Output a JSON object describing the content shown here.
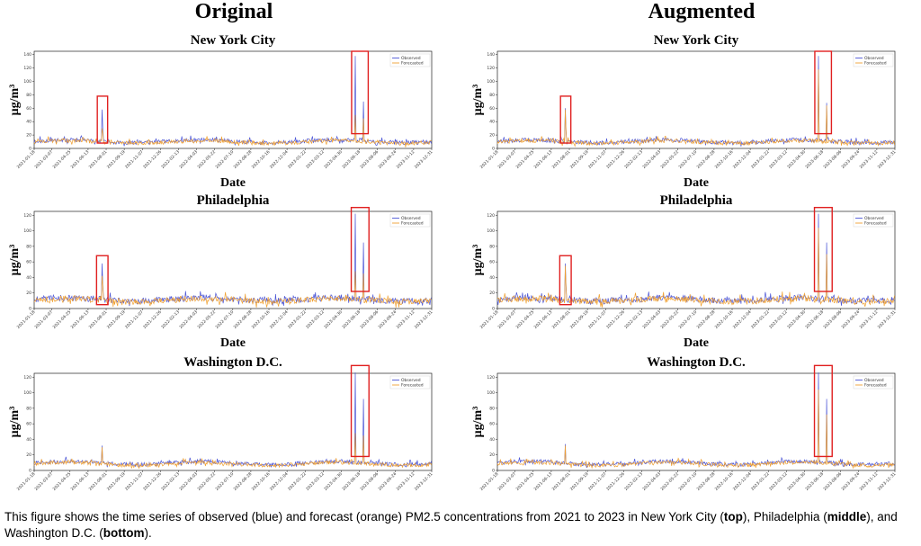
{
  "columns": {
    "left": "Original",
    "right": "Augmented"
  },
  "caption": {
    "p1": "This figure shows the time series of observed (blue) and forecast (orange) PM2.5 concentrations from 2021 to 2023 in New York City (",
    "b1": "top",
    "p2": "), Philadelphia (",
    "b2": "middle",
    "p3": "), and Washington D.C. (",
    "b3": "bottom",
    "p4": ")."
  },
  "colors": {
    "observed": "#4b55d6",
    "forecasted": "#f0a030",
    "highlight": "#e02020"
  },
  "chart_data": [
    {
      "type": "line",
      "panel": "nyc-original",
      "column": "Original",
      "title": "New York City",
      "xlabel": "Date",
      "ylabel": "μg/m³",
      "ylim": [
        0,
        145
      ],
      "yticks": [
        0,
        20,
        40,
        60,
        80,
        100,
        120,
        140
      ],
      "x_start": "2021-01-18",
      "x_end": "2023-12-31",
      "xticks": [
        "2021-01-18",
        "2021-03-07",
        "2021-04-25",
        "2021-06-13",
        "2021-08-01",
        "2021-09-19",
        "2021-11-07",
        "2021-12-26",
        "2022-02-13",
        "2022-04-03",
        "2022-05-22",
        "2022-07-10",
        "2022-08-28",
        "2022-10-16",
        "2022-12-04",
        "2023-01-22",
        "2023-03-12",
        "2023-04-30",
        "2023-06-18",
        "2023-08-06",
        "2023-09-24",
        "2023-11-12",
        "2023-12-31"
      ],
      "legend": [
        "Observed",
        "Forecasted"
      ],
      "legend_position": "top-right",
      "baseline": {
        "observed": 10,
        "forecasted": 9,
        "variation": 6,
        "seed": 11
      },
      "spikes": [
        {
          "date": "2021-07-21",
          "observed": 58,
          "forecasted": 30
        },
        {
          "date": "2021-07-24",
          "observed": 28,
          "forecasted": 22
        },
        {
          "date": "2023-06-07",
          "observed": 138,
          "forecasted": 50
        },
        {
          "date": "2023-06-30",
          "observed": 70,
          "forecasted": 45
        }
      ],
      "highlights": [
        {
          "from": "2021-07-08",
          "to": "2021-08-05",
          "y_from": 8,
          "y_to": 78
        },
        {
          "from": "2023-05-28",
          "to": "2023-07-12",
          "y_from": 22,
          "y_to": 145
        }
      ]
    },
    {
      "type": "line",
      "panel": "nyc-augmented",
      "column": "Augmented",
      "title": "New York City",
      "xlabel": "Date",
      "ylabel": "μg/m³",
      "ylim": [
        0,
        145
      ],
      "yticks": [
        0,
        20,
        40,
        60,
        80,
        100,
        120,
        140
      ],
      "x_start": "2021-01-18",
      "x_end": "2023-12-31",
      "xticks": [
        "2021-01-18",
        "2021-03-07",
        "2021-04-25",
        "2021-06-13",
        "2021-08-01",
        "2021-09-19",
        "2021-11-07",
        "2021-12-26",
        "2022-02-13",
        "2022-04-03",
        "2022-05-22",
        "2022-07-10",
        "2022-08-28",
        "2022-10-16",
        "2022-12-04",
        "2023-01-22",
        "2023-03-12",
        "2023-04-30",
        "2023-06-18",
        "2023-08-06",
        "2023-09-24",
        "2023-11-12",
        "2023-12-31"
      ],
      "legend": [
        "Observed",
        "Forecasted"
      ],
      "legend_position": "top-right",
      "baseline": {
        "observed": 10,
        "forecasted": 9,
        "variation": 6,
        "seed": 12
      },
      "spikes": [
        {
          "date": "2021-07-21",
          "observed": 60,
          "forecasted": 58
        },
        {
          "date": "2021-07-24",
          "observed": 28,
          "forecasted": 26
        },
        {
          "date": "2023-06-07",
          "observed": 138,
          "forecasted": 118
        },
        {
          "date": "2023-06-30",
          "observed": 68,
          "forecasted": 64
        }
      ],
      "highlights": [
        {
          "from": "2021-07-08",
          "to": "2021-08-05",
          "y_from": 8,
          "y_to": 78
        },
        {
          "from": "2023-05-28",
          "to": "2023-07-12",
          "y_from": 22,
          "y_to": 145
        }
      ]
    },
    {
      "type": "line",
      "panel": "phl-original",
      "column": "Original",
      "title": "Philadelphia",
      "xlabel": "Date",
      "ylabel": "μg/m³",
      "ylim": [
        0,
        125
      ],
      "yticks": [
        0,
        20,
        40,
        60,
        80,
        100,
        120
      ],
      "x_start": "2021-01-18",
      "x_end": "2023-12-31",
      "xticks": [
        "2021-01-18",
        "2021-03-07",
        "2021-04-25",
        "2021-06-13",
        "2021-08-01",
        "2021-09-19",
        "2021-11-07",
        "2021-12-26",
        "2022-02-13",
        "2022-04-03",
        "2022-05-22",
        "2022-07-10",
        "2022-08-28",
        "2022-10-16",
        "2022-12-04",
        "2023-01-22",
        "2023-03-12",
        "2023-04-30",
        "2023-06-18",
        "2023-08-06",
        "2023-09-24",
        "2023-11-12",
        "2023-12-31"
      ],
      "legend": [
        "Observed",
        "Forecasted"
      ],
      "legend_position": "top-right",
      "baseline": {
        "observed": 11,
        "forecasted": 10,
        "variation": 8,
        "seed": 21
      },
      "spikes": [
        {
          "date": "2021-07-21",
          "observed": 58,
          "forecasted": 42
        },
        {
          "date": "2021-07-24",
          "observed": 30,
          "forecasted": 28
        },
        {
          "date": "2023-06-08",
          "observed": 122,
          "forecasted": 48
        },
        {
          "date": "2023-06-30",
          "observed": 85,
          "forecasted": 45
        }
      ],
      "highlights": [
        {
          "from": "2021-07-06",
          "to": "2021-08-06",
          "y_from": 5,
          "y_to": 68
        },
        {
          "from": "2023-05-27",
          "to": "2023-07-14",
          "y_from": 22,
          "y_to": 130
        }
      ]
    },
    {
      "type": "line",
      "panel": "phl-augmented",
      "column": "Augmented",
      "title": "Philadelphia",
      "xlabel": "Date",
      "ylabel": "μg/m³",
      "ylim": [
        0,
        125
      ],
      "yticks": [
        0,
        20,
        40,
        60,
        80,
        100,
        120
      ],
      "x_start": "2021-01-18",
      "x_end": "2023-12-31",
      "xticks": [
        "2021-01-18",
        "2021-03-07",
        "2021-04-25",
        "2021-06-13",
        "2021-08-01",
        "2021-09-19",
        "2021-11-07",
        "2021-12-26",
        "2022-02-13",
        "2022-04-03",
        "2022-05-22",
        "2022-07-10",
        "2022-08-28",
        "2022-10-16",
        "2022-12-04",
        "2023-01-22",
        "2023-03-12",
        "2023-04-30",
        "2023-06-18",
        "2023-08-06",
        "2023-09-24",
        "2023-11-12",
        "2023-12-31"
      ],
      "legend": [
        "Observed",
        "Forecasted"
      ],
      "legend_position": "top-right",
      "baseline": {
        "observed": 11,
        "forecasted": 10,
        "variation": 8,
        "seed": 22
      },
      "spikes": [
        {
          "date": "2021-07-21",
          "observed": 58,
          "forecasted": 55
        },
        {
          "date": "2021-07-24",
          "observed": 30,
          "forecasted": 28
        },
        {
          "date": "2023-06-08",
          "observed": 122,
          "forecasted": 104
        },
        {
          "date": "2023-06-30",
          "observed": 85,
          "forecasted": 70
        }
      ],
      "highlights": [
        {
          "from": "2021-07-06",
          "to": "2021-08-06",
          "y_from": 5,
          "y_to": 68
        },
        {
          "from": "2023-05-27",
          "to": "2023-07-14",
          "y_from": 22,
          "y_to": 130
        }
      ]
    },
    {
      "type": "line",
      "panel": "dc-original",
      "column": "Original",
      "title": "Washington D.C.",
      "xlabel": "",
      "ylabel": "μg/m³",
      "ylim": [
        0,
        125
      ],
      "yticks": [
        0,
        20,
        40,
        60,
        80,
        100,
        120
      ],
      "x_start": "2021-01-18",
      "x_end": "2023-12-31",
      "xticks": [
        "2021-01-18",
        "2021-03-07",
        "2021-04-25",
        "2021-06-13",
        "2021-08-01",
        "2021-09-19",
        "2021-11-07",
        "2021-12-26",
        "2022-02-13",
        "2022-04-03",
        "2022-05-22",
        "2022-07-10",
        "2022-08-28",
        "2022-10-16",
        "2022-12-04",
        "2023-01-22",
        "2023-03-12",
        "2023-04-30",
        "2023-06-18",
        "2023-08-06",
        "2023-09-24",
        "2023-11-12",
        "2023-12-31"
      ],
      "legend": [
        "Observed",
        "Forecasted"
      ],
      "legend_position": "top-right",
      "baseline": {
        "observed": 9,
        "forecasted": 8,
        "variation": 5,
        "seed": 31
      },
      "spikes": [
        {
          "date": "2021-07-21",
          "observed": 32,
          "forecasted": 30
        },
        {
          "date": "2023-06-08",
          "observed": 126,
          "forecasted": 48
        },
        {
          "date": "2023-06-30",
          "observed": 92,
          "forecasted": 45
        }
      ],
      "highlights": [
        {
          "from": "2023-05-27",
          "to": "2023-07-14",
          "y_from": 18,
          "y_to": 135
        }
      ]
    },
    {
      "type": "line",
      "panel": "dc-augmented",
      "column": "Augmented",
      "title": "Washington D.C.",
      "xlabel": "",
      "ylabel": "μg/m³",
      "ylim": [
        0,
        125
      ],
      "yticks": [
        0,
        20,
        40,
        60,
        80,
        100,
        120
      ],
      "x_start": "2021-01-18",
      "x_end": "2023-12-31",
      "xticks": [
        "2021-01-18",
        "2021-03-07",
        "2021-04-25",
        "2021-06-13",
        "2021-08-01",
        "2021-09-19",
        "2021-11-07",
        "2021-12-26",
        "2022-02-13",
        "2022-04-03",
        "2022-05-22",
        "2022-07-10",
        "2022-08-28",
        "2022-10-16",
        "2022-12-04",
        "2023-01-22",
        "2023-03-12",
        "2023-04-30",
        "2023-06-18",
        "2023-08-06",
        "2023-09-24",
        "2023-11-12",
        "2023-12-31"
      ],
      "legend": [
        "Observed",
        "Forecasted"
      ],
      "legend_position": "top-right",
      "baseline": {
        "observed": 9,
        "forecasted": 8,
        "variation": 5,
        "seed": 32
      },
      "spikes": [
        {
          "date": "2021-07-21",
          "observed": 34,
          "forecasted": 32
        },
        {
          "date": "2023-06-08",
          "observed": 126,
          "forecasted": 104
        },
        {
          "date": "2023-06-30",
          "observed": 92,
          "forecasted": 72
        }
      ],
      "highlights": [
        {
          "from": "2023-05-27",
          "to": "2023-07-14",
          "y_from": 18,
          "y_to": 135
        }
      ]
    }
  ]
}
